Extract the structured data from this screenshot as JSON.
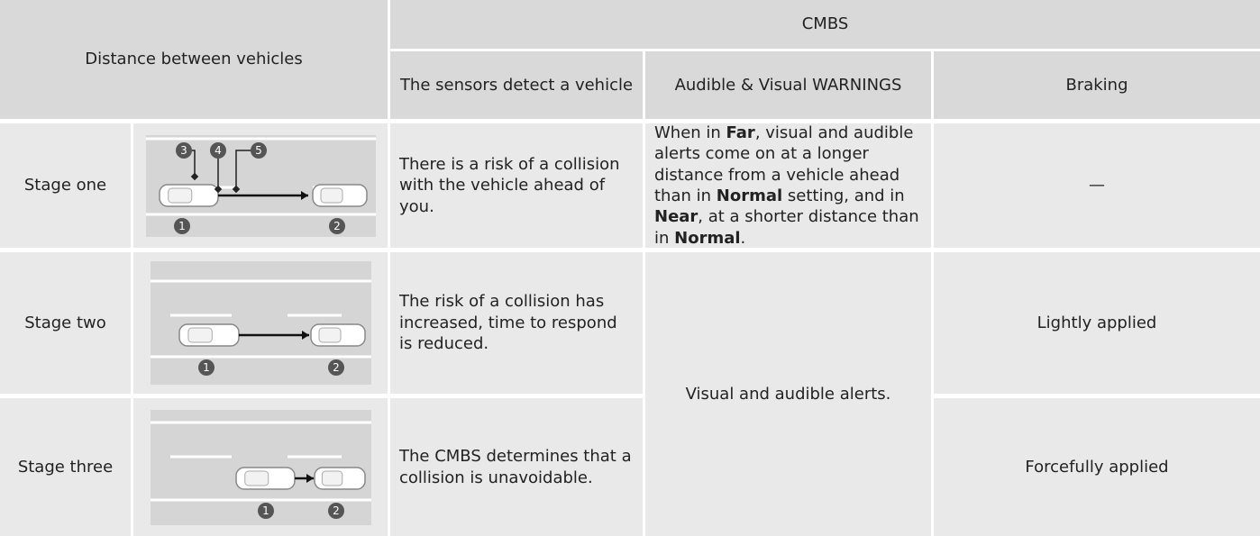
{
  "header": {
    "distance": "Distance between vehicles",
    "cmbs": "CMBS",
    "sensors": "The sensors detect a vehicle",
    "warnings": "Audible & Visual WARNINGS",
    "braking": "Braking"
  },
  "rows": [
    {
      "stage": "Stage one",
      "diagram_labels": [
        "3",
        "4",
        "5",
        "1",
        "2"
      ],
      "sensors": "There is a risk of a collision with the vehicle ahead of you.",
      "warnings": [
        {
          "text": "When in ",
          "bold": false
        },
        {
          "text": "Far",
          "bold": true
        },
        {
          "text": ", visual and audible alerts come on at a longer distance from a vehicle ahead than in ",
          "bold": false
        },
        {
          "text": "Normal",
          "bold": true
        },
        {
          "text": " setting, and in ",
          "bold": false
        },
        {
          "text": "Near",
          "bold": true
        },
        {
          "text": ", at a shorter distance than in ",
          "bold": false
        },
        {
          "text": "Normal",
          "bold": true
        },
        {
          "text": ".",
          "bold": false
        }
      ],
      "braking": "—"
    },
    {
      "stage": "Stage two",
      "diagram_labels": [
        "1",
        "2"
      ],
      "sensors": "The risk of a collision has increased, time to respond is reduced.",
      "braking": "Lightly applied"
    },
    {
      "stage": "Stage three",
      "diagram_labels": [
        "1",
        "2"
      ],
      "sensors": "The CMBS determines that a collision is unavoidable.",
      "braking": "Forcefully applied"
    }
  ],
  "shared_warnings": "Visual and audible alerts."
}
